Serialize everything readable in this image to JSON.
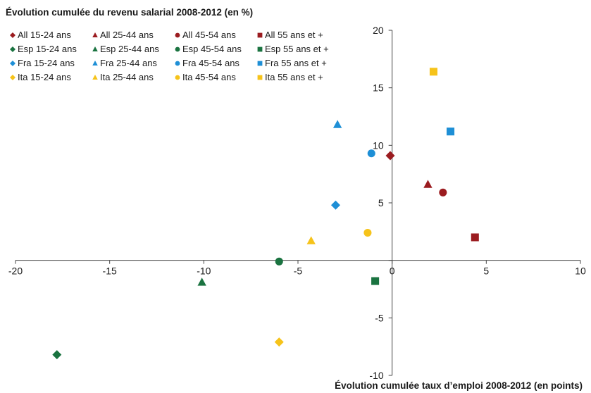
{
  "chart_data": {
    "type": "scatter",
    "title": "Évolution cumulée du revenu salarial 2008-2012 (en %)",
    "xlabel": "Évolution cumulée taux d’emploi 2008-2012 (en points)",
    "ylabel": "",
    "xlim": [
      -20,
      10
    ],
    "ylim": [
      -10,
      20
    ],
    "xticks": [
      -20,
      -15,
      -10,
      -5,
      0,
      5,
      10
    ],
    "yticks": [
      -10,
      -5,
      0,
      5,
      10,
      15,
      20
    ],
    "xtick_labels": [
      "-20",
      "-15",
      "-10",
      "-5",
      "0",
      "5",
      "10"
    ],
    "ytick_labels": [
      "-10",
      "-5",
      "0",
      "5",
      "10",
      "15",
      "20"
    ],
    "grid": false,
    "legend_position": "top-left",
    "series": [
      {
        "name": "All 15-24 ans",
        "color": "#9b1c20",
        "marker": "diamond",
        "x": [
          -0.1
        ],
        "y": [
          9.1
        ]
      },
      {
        "name": "All 25-44 ans",
        "color": "#9b1c20",
        "marker": "triangle",
        "x": [
          1.9
        ],
        "y": [
          6.6
        ]
      },
      {
        "name": "All 45-54 ans",
        "color": "#9b1c20",
        "marker": "circle",
        "x": [
          2.7
        ],
        "y": [
          5.9
        ]
      },
      {
        "name": "All 55 ans et +",
        "color": "#9b1c20",
        "marker": "square",
        "x": [
          4.4
        ],
        "y": [
          2.0
        ]
      },
      {
        "name": "Esp 15-24 ans",
        "color": "#1a7340",
        "marker": "diamond",
        "x": [
          -17.8
        ],
        "y": [
          -8.2
        ]
      },
      {
        "name": "Esp 25-44 ans",
        "color": "#1a7340",
        "marker": "triangle",
        "x": [
          -10.1
        ],
        "y": [
          -1.9
        ]
      },
      {
        "name": "Esp 45-54 ans",
        "color": "#1a7340",
        "marker": "circle",
        "x": [
          -6.0
        ],
        "y": [
          -0.1
        ]
      },
      {
        "name": "Esp 55 ans et +",
        "color": "#1a7340",
        "marker": "square",
        "x": [
          -0.9
        ],
        "y": [
          -1.8
        ]
      },
      {
        "name": "Fra 15-24 ans",
        "color": "#1e8fd6",
        "marker": "diamond",
        "x": [
          -3.0
        ],
        "y": [
          4.8
        ]
      },
      {
        "name": "Fra 25-44 ans",
        "color": "#1e8fd6",
        "marker": "triangle",
        "x": [
          -2.9
        ],
        "y": [
          11.8
        ]
      },
      {
        "name": "Fra 45-54 ans",
        "color": "#1e8fd6",
        "marker": "circle",
        "x": [
          -1.1
        ],
        "y": [
          9.3
        ]
      },
      {
        "name": "Fra 55 ans et +",
        "color": "#1e8fd6",
        "marker": "square",
        "x": [
          3.1
        ],
        "y": [
          11.2
        ]
      },
      {
        "name": "Ita 15-24 ans",
        "color": "#f6c31a",
        "marker": "diamond",
        "x": [
          -6.0
        ],
        "y": [
          -7.1
        ]
      },
      {
        "name": "Ita 25-44 ans",
        "color": "#f6c31a",
        "marker": "triangle",
        "x": [
          -4.3
        ],
        "y": [
          1.7
        ]
      },
      {
        "name": "Ita 45-54 ans",
        "color": "#f6c31a",
        "marker": "circle",
        "x": [
          -1.3
        ],
        "y": [
          2.4
        ]
      },
      {
        "name": "Ita 55 ans et +",
        "color": "#f6c31a",
        "marker": "square",
        "x": [
          2.2
        ],
        "y": [
          16.4
        ]
      }
    ]
  }
}
